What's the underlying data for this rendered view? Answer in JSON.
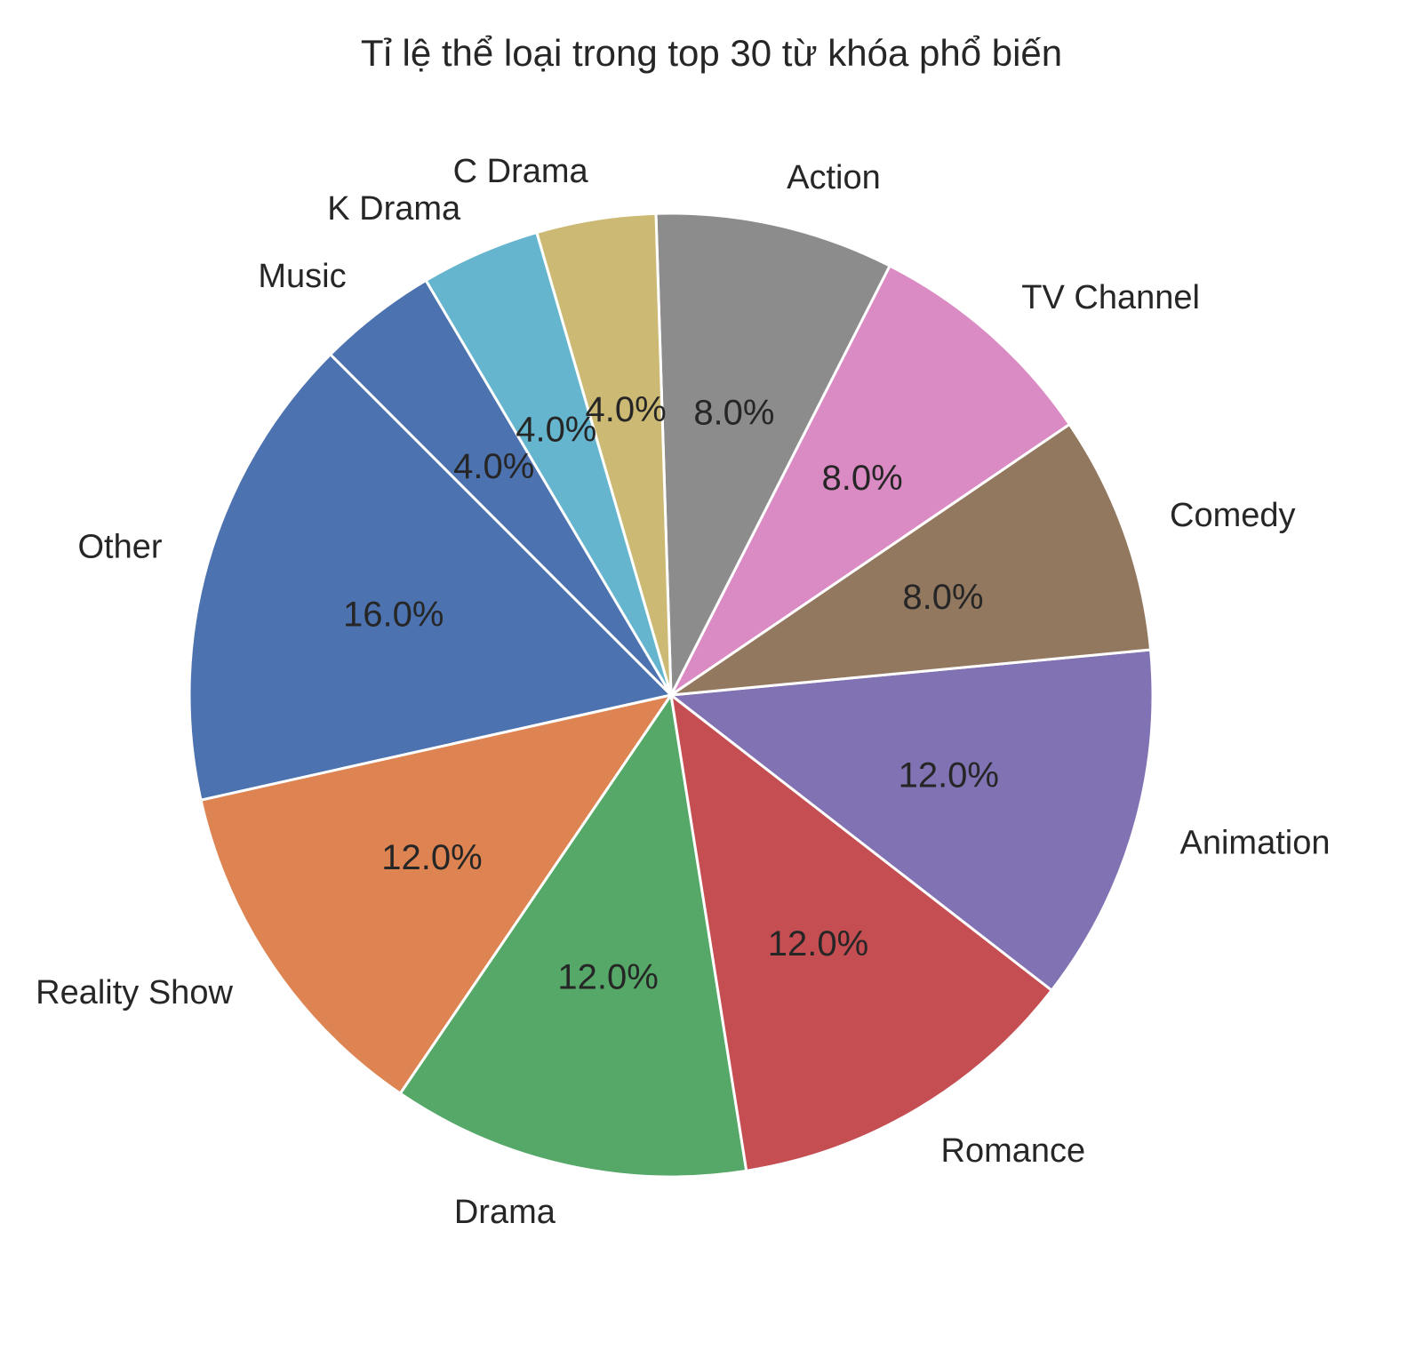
{
  "chart_data": {
    "type": "pie",
    "title": "Tỉ lệ thể loại trong top 30 từ khóa phổ biến",
    "start_angle_deg": 135,
    "direction": "counterclockwise",
    "slices": [
      {
        "label": "Other",
        "value": 16.0,
        "pct_label": "16.0%",
        "color": "#4c72b0"
      },
      {
        "label": "Reality Show",
        "value": 12.0,
        "pct_label": "12.0%",
        "color": "#dd8452"
      },
      {
        "label": "Drama",
        "value": 12.0,
        "pct_label": "12.0%",
        "color": "#55a868"
      },
      {
        "label": "Romance",
        "value": 12.0,
        "pct_label": "12.0%",
        "color": "#c44e52"
      },
      {
        "label": "Animation",
        "value": 12.0,
        "pct_label": "12.0%",
        "color": "#8172b3"
      },
      {
        "label": "Comedy",
        "value": 8.0,
        "pct_label": "8.0%",
        "color": "#937860"
      },
      {
        "label": "TV Channel",
        "value": 8.0,
        "pct_label": "8.0%",
        "color": "#da8bc3"
      },
      {
        "label": "Action",
        "value": 8.0,
        "pct_label": "8.0%",
        "color": "#8c8c8c"
      },
      {
        "label": "C Drama",
        "value": 4.0,
        "pct_label": "4.0%",
        "color": "#ccb974"
      },
      {
        "label": "K Drama",
        "value": 4.0,
        "pct_label": "4.0%",
        "color": "#64b5cd"
      },
      {
        "label": "Music",
        "value": 4.0,
        "pct_label": "4.0%",
        "color": "#4c72b0"
      }
    ]
  }
}
